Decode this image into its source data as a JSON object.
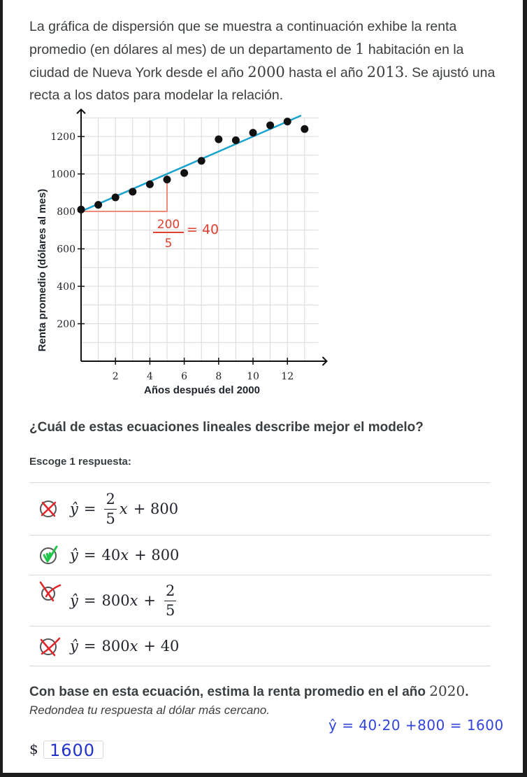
{
  "intro": {
    "part1": "La gráfica de dispersión que se muestra a continuación exhibe la renta promedio (en dólares al mes) de un departamento de ",
    "num1": "1",
    "part2": " habitación en la ciudad de Nueva York desde el año ",
    "year1": "2000",
    "part3": " hasta el año ",
    "year2": "2013",
    "part4": ". Se ajustó una recta a los datos para modelar la relación."
  },
  "chart_data": {
    "type": "scatter",
    "xlabel": "Años después del 2000",
    "ylabel": "Renta promedio (dólares al mes)",
    "xlim": [
      0,
      14
    ],
    "ylim": [
      0,
      1300
    ],
    "xticks": [
      2,
      4,
      6,
      8,
      10,
      12
    ],
    "yticks": [
      200,
      400,
      600,
      800,
      1000,
      1200
    ],
    "grid": true,
    "points": [
      {
        "x": 0,
        "y": 810
      },
      {
        "x": 1,
        "y": 835
      },
      {
        "x": 2,
        "y": 875
      },
      {
        "x": 3,
        "y": 905
      },
      {
        "x": 4,
        "y": 945
      },
      {
        "x": 5,
        "y": 970
      },
      {
        "x": 6,
        "y": 1005
      },
      {
        "x": 7,
        "y": 1070
      },
      {
        "x": 8,
        "y": 1185
      },
      {
        "x": 9,
        "y": 1180
      },
      {
        "x": 10,
        "y": 1220
      },
      {
        "x": 11,
        "y": 1260
      },
      {
        "x": 12,
        "y": 1280
      },
      {
        "x": 13,
        "y": 1240
      }
    ],
    "fit_line": {
      "slope": 40,
      "intercept": 800,
      "x_range": [
        0,
        12.8
      ]
    },
    "slope_annotation": {
      "rise_from": [
        0,
        800
      ],
      "rise_to": [
        5,
        1000
      ],
      "num": "200",
      "den": "5",
      "result": "= 40"
    },
    "colors": {
      "points": "#111111",
      "line": "#1aa3cf",
      "annotation": "#f08a7a",
      "grid": "#d9d9d9"
    }
  },
  "question": "¿Cuál de estas ecuaciones lineales describe mejor el modelo?",
  "choose_label": "Escoge 1 respuesta:",
  "options": [
    {
      "yhat": "ŷ",
      "eq_sign": "=",
      "num": "2",
      "den": "5",
      "var": "x",
      "rest": "+ 800",
      "status": "incorrect"
    },
    {
      "yhat": "ŷ",
      "eq_sign": "=",
      "expr": "40",
      "var": "x",
      "rest": "+ 800",
      "status": "correct"
    },
    {
      "yhat": "ŷ",
      "eq_sign": "=",
      "expr": "800",
      "var": "x",
      "plus": "+",
      "num": "2",
      "den": "5",
      "status": "incorrect"
    },
    {
      "yhat": "ŷ",
      "eq_sign": "=",
      "expr": "800",
      "var": "x",
      "rest": "+ 40",
      "status": "incorrect"
    }
  ],
  "estimate": {
    "text": "Con base en esta ecuación, estima la renta promedio en el año ",
    "year": "2020",
    "dot": ".",
    "round": "Redondea tu respuesta al dólar más cercano."
  },
  "answer": {
    "currency": "$",
    "value": "1600",
    "handnote": "ŷ = 40·20 +800 = 1600"
  }
}
